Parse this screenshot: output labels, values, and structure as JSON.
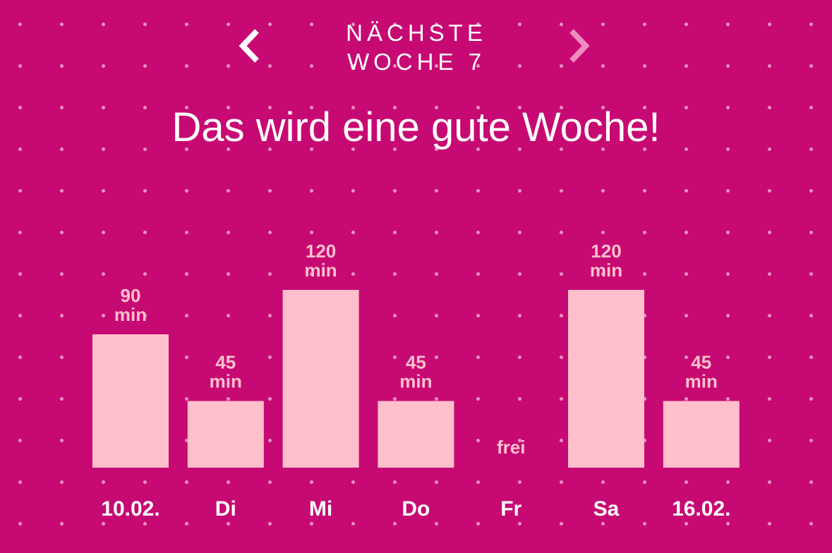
{
  "header": {
    "week_line1": "NÄCHSTE",
    "week_line2": "WOCHE 7",
    "prev_icon": "chevron-left-icon",
    "next_icon": "chevron-right-icon"
  },
  "headline": "Das wird eine gute Woche!",
  "colors": {
    "background": "#c70a73",
    "bar": "#ffc0cb",
    "value_label": "#ffc0cb",
    "text": "#ffffff",
    "next_arrow": "#f08cc0"
  },
  "chart_data": {
    "type": "bar",
    "categories": [
      "10.02.",
      "Di",
      "Mi",
      "Do",
      "Fr",
      "Sa",
      "16.02."
    ],
    "values": [
      90,
      45,
      120,
      45,
      0,
      120,
      45
    ],
    "value_labels": [
      "90 min",
      "45 min",
      "120 min",
      "45 min",
      "frei",
      "120 min",
      "45 min"
    ],
    "ylim": [
      0,
      120
    ],
    "grid": false
  }
}
